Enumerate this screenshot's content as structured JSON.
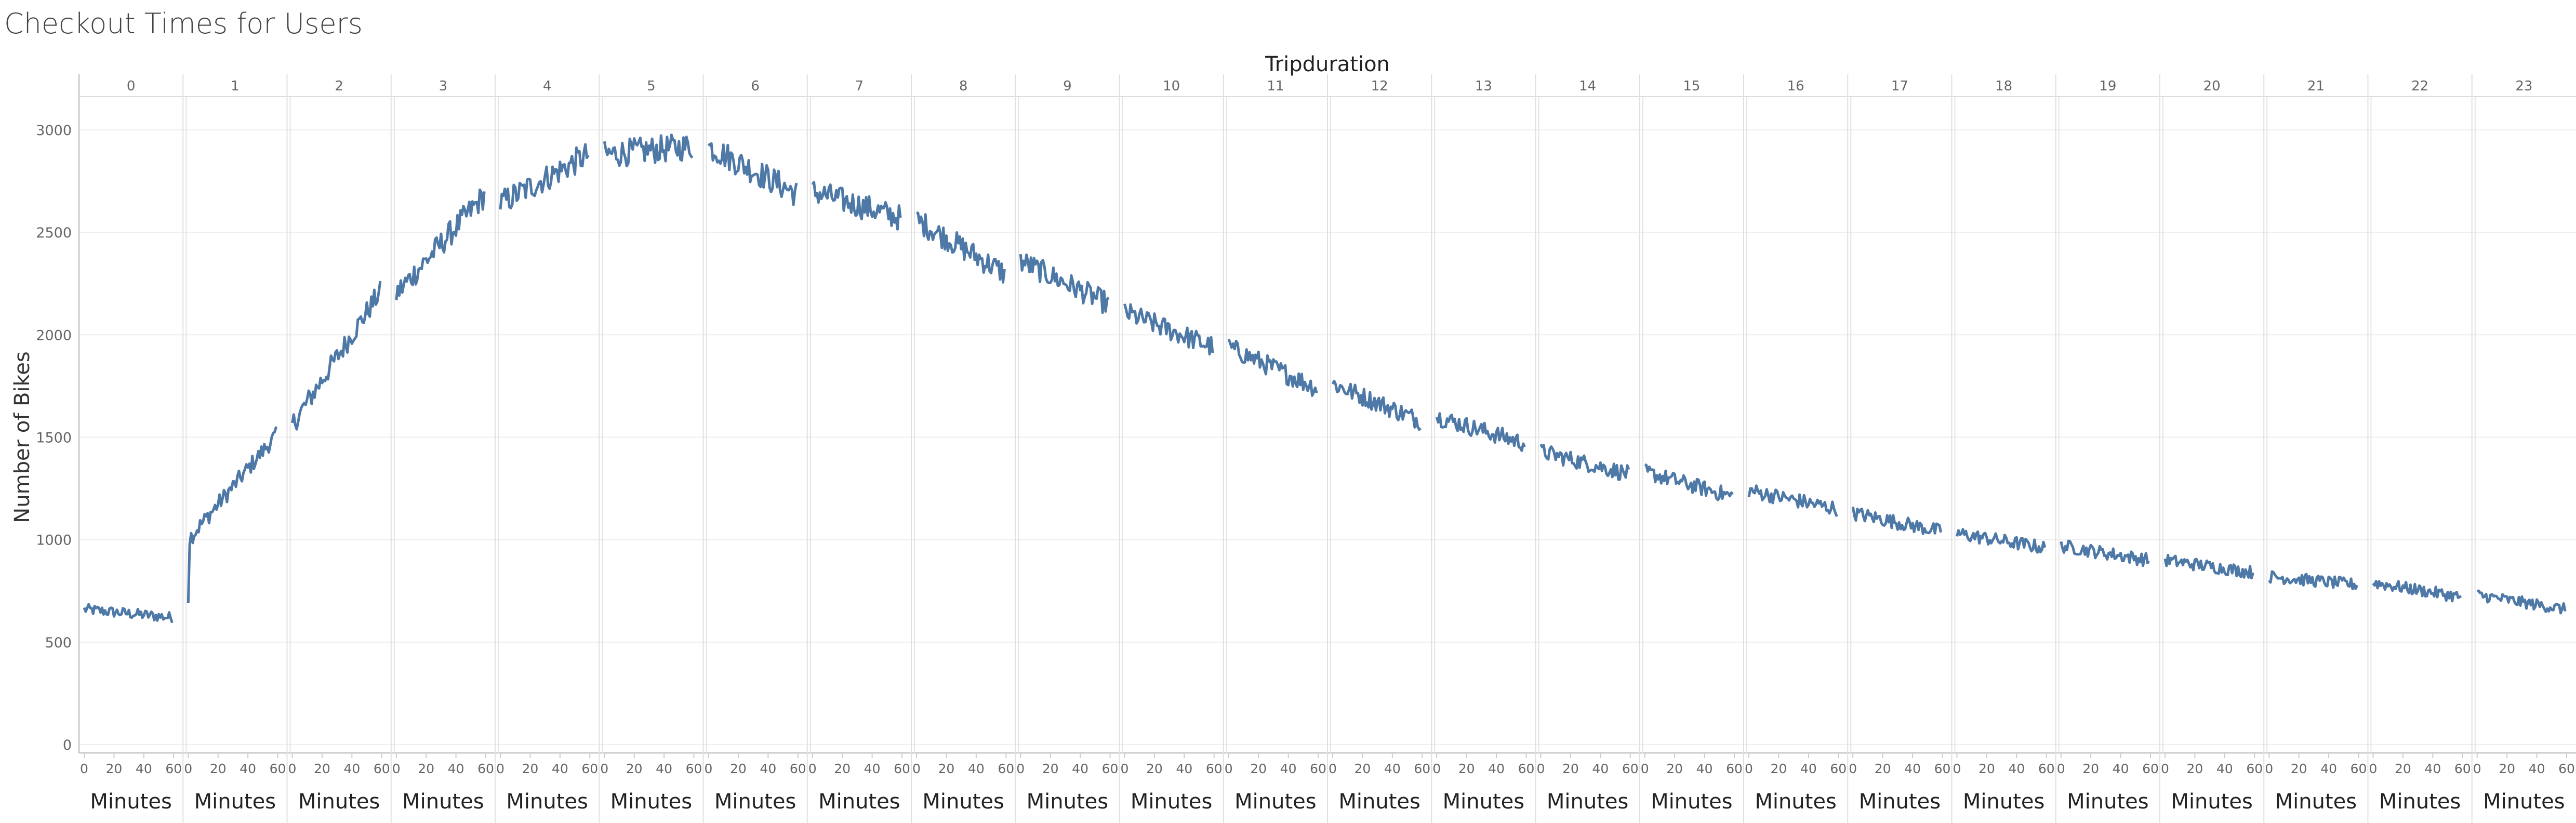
{
  "chart_data": {
    "type": "line",
    "title": "Checkout Times for Users",
    "column_header": "Tripduration",
    "ylabel": "Number of Bikes",
    "xlabel": "Minutes",
    "ylim": [
      0,
      3000
    ],
    "y_ticks": [
      0,
      500,
      1000,
      1500,
      2000,
      2500,
      3000
    ],
    "x_range_minutes": [
      0,
      60
    ],
    "x_ticks": [
      0,
      20,
      40,
      60
    ],
    "grid": true,
    "panels": [
      {
        "hour": "0",
        "start": 660,
        "end": 620
      },
      {
        "hour": "1",
        "start": 1000,
        "end": 1510
      },
      {
        "hour": "2",
        "start": 1560,
        "end": 2210
      },
      {
        "hour": "3",
        "start": 2200,
        "end": 2680
      },
      {
        "hour": "4",
        "start": 2640,
        "end": 2880
      },
      {
        "hour": "5",
        "start": 2880,
        "end": 2920
      },
      {
        "hour": "6",
        "start": 2920,
        "end": 2690
      },
      {
        "hour": "7",
        "start": 2700,
        "end": 2570
      },
      {
        "hour": "8",
        "start": 2560,
        "end": 2300
      },
      {
        "hour": "9",
        "start": 2360,
        "end": 2150
      },
      {
        "hour": "10",
        "start": 2110,
        "end": 1940
      },
      {
        "hour": "11",
        "start": 1940,
        "end": 1740
      },
      {
        "hour": "12",
        "start": 1760,
        "end": 1580
      },
      {
        "hour": "13",
        "start": 1600,
        "end": 1470
      },
      {
        "hour": "14",
        "start": 1430,
        "end": 1320
      },
      {
        "hour": "15",
        "start": 1330,
        "end": 1210
      },
      {
        "hour": "16",
        "start": 1240,
        "end": 1150
      },
      {
        "hour": "17",
        "start": 1130,
        "end": 1040
      },
      {
        "hour": "18",
        "start": 1030,
        "end": 960
      },
      {
        "hour": "19",
        "start": 970,
        "end": 900
      },
      {
        "hour": "20",
        "start": 900,
        "end": 840
      },
      {
        "hour": "21",
        "start": 820,
        "end": 780
      },
      {
        "hour": "22",
        "start": 790,
        "end": 720
      },
      {
        "hour": "23",
        "start": 730,
        "end": 660
      }
    ],
    "line_color": "#4e79a7"
  }
}
